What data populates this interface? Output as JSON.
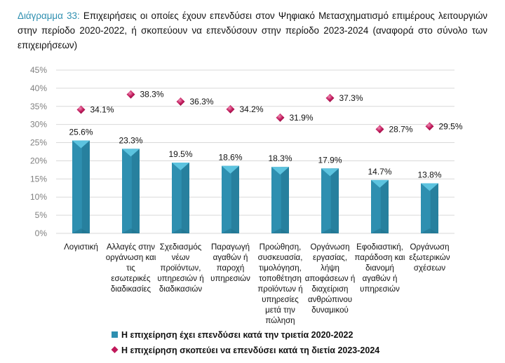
{
  "caption": {
    "label": "Διάγραμμα 33:",
    "text": "Επιχειρήσεις οι οποίες έχουν επενδύσει στον Ψηφιακό Μετασχηματισμό επιμέρους λειτουργιών στην περίοδο 2020-2022, ή σκοπεύουν να επενδύσουν στην περίοδο 2023-2024 (αναφορά στο σύνολο των επιχειρήσεων)"
  },
  "colors": {
    "bar": "#2e8fb0",
    "bar_light": "#5cc3df",
    "bar_dark": "#1f6f8a",
    "marker": "#c0185a",
    "marker_light": "#e7548f",
    "caption_label": "#2e8fb0",
    "grid": "#d9d9d9"
  },
  "chart_data": {
    "type": "bar",
    "title": "Διάγραμμα 33",
    "xlabel": "",
    "ylabel": "",
    "ylim": [
      0,
      45
    ],
    "yticks": [
      "0%",
      "5%",
      "10%",
      "15%",
      "20%",
      "25%",
      "30%",
      "35%",
      "40%",
      "45%"
    ],
    "grid": true,
    "legend_position": "bottom",
    "categories": [
      [
        "Λογιστική"
      ],
      [
        "Αλλαγές στην",
        "οργάνωση και",
        "τις",
        "εσωτερικές",
        "διαδικασίες"
      ],
      [
        "Σχεδιασμός",
        "νέων",
        "προϊόντων,",
        "υπηρεσιών ή",
        "διαδικασιών"
      ],
      [
        "Παραγωγή",
        "αγαθών ή",
        "παροχή",
        "υπηρεσιών"
      ],
      [
        "Προώθηση,",
        "συσκευασία,",
        "τιμολόγηση,",
        "τοποθέτηση",
        "προϊόντων ή",
        "υπηρεσίες",
        "μετά την",
        "πώληση"
      ],
      [
        "Οργάνωση",
        "εργασίας,",
        "λήψη",
        "αποφάσεων ή",
        "διαχείριση",
        "ανθρώπινου",
        "δυναμικού"
      ],
      [
        "Εφοδιαστική,",
        "παράδοση και",
        "διανομή",
        "αγαθών ή",
        "υπηρεσιών"
      ],
      [
        "Οργάνωση",
        "εξωτερικών",
        "σχέσεων"
      ]
    ],
    "series": [
      {
        "name": "Η επιχείρηση έχει επενδύσει κατά την τριετία 2020-2022",
        "type": "bar",
        "values": [
          25.6,
          23.3,
          19.5,
          18.6,
          18.3,
          17.9,
          14.7,
          13.8
        ],
        "labels": [
          "25.6%",
          "23.3%",
          "19.5%",
          "18.6%",
          "18.3%",
          "17.9%",
          "14.7%",
          "13.8%"
        ]
      },
      {
        "name": "Η επιχείρηση σκοπεύει να επενδύσει κατά τη διετία 2023-2024",
        "type": "scatter",
        "marker": "diamond",
        "values": [
          34.1,
          38.3,
          36.3,
          34.2,
          31.9,
          37.3,
          28.7,
          29.5
        ],
        "labels": [
          "34.1%",
          "38.3%",
          "36.3%",
          "34.2%",
          "31.9%",
          "37.3%",
          "28.7%",
          "29.5%"
        ]
      }
    ]
  }
}
